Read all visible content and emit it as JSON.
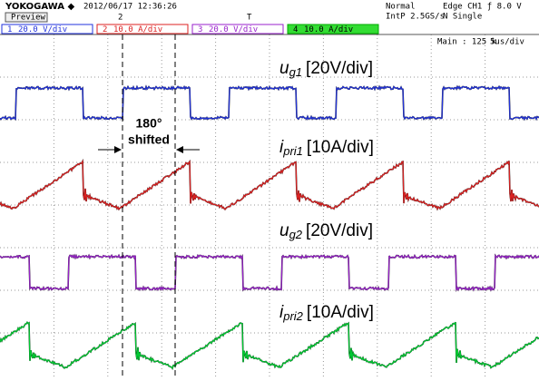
{
  "header": {
    "brand": "YOKOGAWA ◆",
    "datetime": "2012/06/17 12:36:26",
    "mode": "Preview",
    "marker_2": "2",
    "trigger_marker": "T",
    "acq_mode": "Normal",
    "sample_rate": "IntP 2.5GS/s",
    "trigger": "Edge CH1 ƒ 8.0 V",
    "single": "N Single"
  },
  "channels": [
    {
      "number": "1",
      "scale": "20.0 V/div"
    },
    {
      "number": "2",
      "scale": "10.0 A/div"
    },
    {
      "number": "3",
      "scale": "20.0 V/div"
    },
    {
      "number": "4",
      "scale": "10.0 A/div"
    }
  ],
  "timebase": {
    "main": "Main : 125 k",
    "scale": "5us/div"
  },
  "annotations": {
    "signals": [
      {
        "symbol": "u",
        "subscript": "g1",
        "unit": "[20V/div]"
      },
      {
        "symbol": "i",
        "subscript": "pri1",
        "unit": "[10A/div]"
      },
      {
        "symbol": "u",
        "subscript": "g2",
        "unit": "[20V/div]"
      },
      {
        "symbol": "i",
        "subscript": "pri2",
        "unit": "[10A/div]"
      }
    ],
    "phase": "180°",
    "phase_note": "shifted"
  }
}
